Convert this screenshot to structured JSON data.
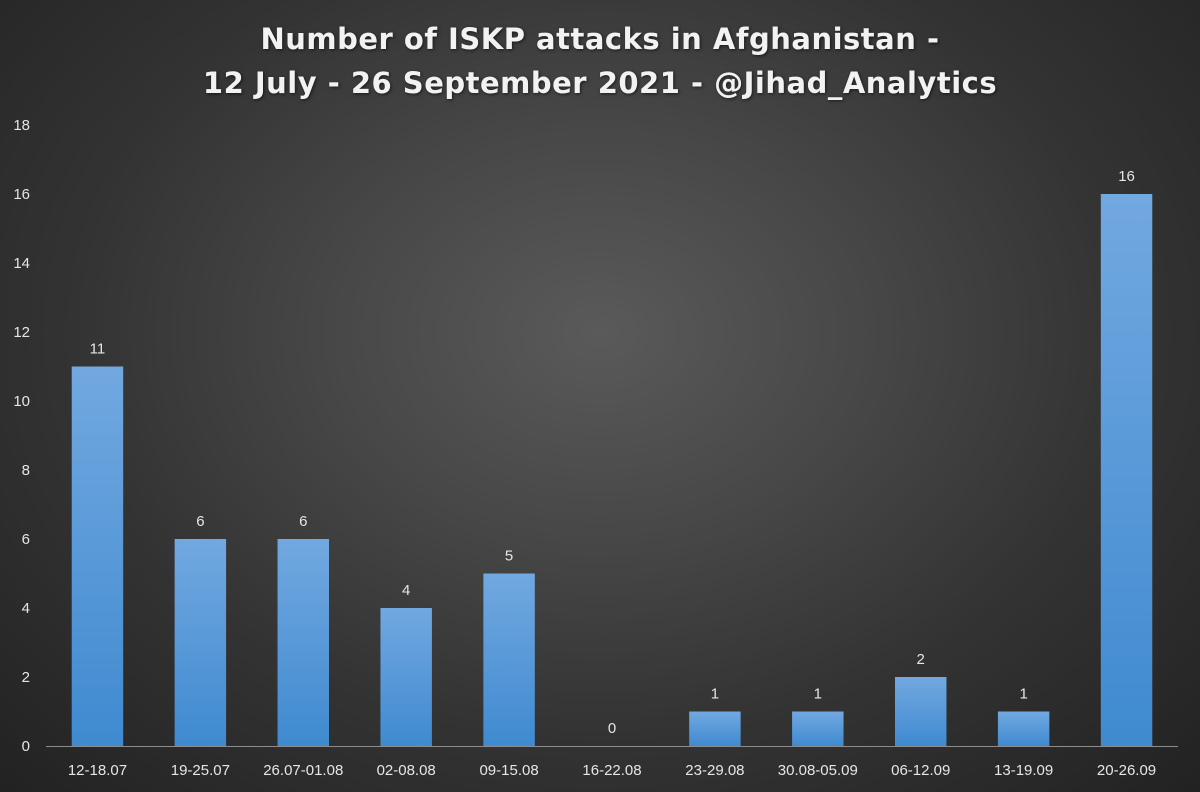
{
  "chart_data": {
    "type": "bar",
    "title_lines": [
      "Number of ISKP attacks in Afghanistan -",
      "12 July - 26 September 2021 - @Jihad_Analytics"
    ],
    "xlabel": "",
    "ylabel": "",
    "categories": [
      "12-18.07",
      "19-25.07",
      "26.07-01.08",
      "02-08.08",
      "09-15.08",
      "16-22.08",
      "23-29.08",
      "30.08-05.09",
      "06-12.09",
      "13-19.09",
      "20-26.09"
    ],
    "values": [
      11,
      6,
      6,
      4,
      5,
      0,
      1,
      1,
      2,
      1,
      16
    ],
    "ylim": [
      0,
      18
    ],
    "yticks": [
      0,
      2,
      4,
      6,
      8,
      10,
      12,
      14,
      16,
      18
    ],
    "grid": false,
    "legend": "none",
    "data_labels": true,
    "bar_color_top": "#72a8e0",
    "bar_color_bottom": "#3f8ad0",
    "axis_color": "#8c8c8c",
    "text_color": "#e6e6e6"
  }
}
